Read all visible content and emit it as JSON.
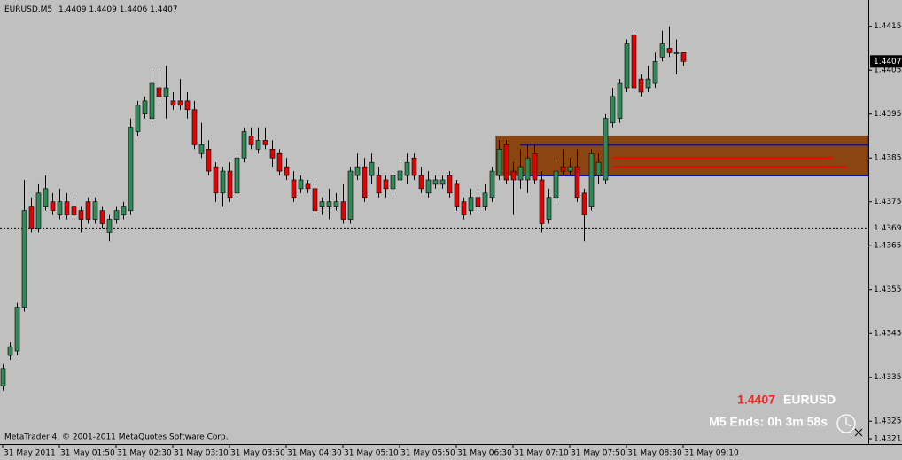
{
  "chart_data": {
    "type": "candlestick",
    "title": "EURUSD,M5",
    "categories": [
      "31 May 2011",
      null,
      null,
      null,
      null,
      null,
      null,
      null,
      "31 May 01:50",
      null,
      null,
      null,
      null,
      null,
      null,
      null,
      "31 May 02:30",
      null,
      null,
      null,
      null,
      null,
      null,
      null,
      "31 May 03:10",
      null,
      null,
      null,
      null,
      null,
      null,
      null,
      "31 May 03:50",
      null,
      null,
      null,
      null,
      null,
      null,
      null,
      "31 May 04:30",
      null,
      null,
      null,
      null,
      null,
      null,
      null,
      "31 May 05:10",
      null,
      null,
      null,
      null,
      null,
      null,
      null,
      "31 May 05:50",
      null,
      null,
      null,
      null,
      null,
      null,
      null,
      "31 May 06:30",
      null,
      null,
      null,
      null,
      null,
      null,
      null,
      "31 May 07:10",
      null,
      null,
      null,
      null,
      null,
      null,
      null,
      "31 May 07:50",
      null,
      null,
      null,
      null,
      null,
      null,
      null,
      "31 May 08:30",
      null,
      null,
      null,
      null,
      null,
      null,
      null,
      "31 May 09:10"
    ],
    "open": [
      1.4333,
      1.434,
      1.4341,
      1.4351,
      1.4374,
      1.4369,
      1.4374,
      1.4375,
      1.4372,
      1.4375,
      1.4374,
      1.4373,
      1.4375,
      1.4371,
      1.4373,
      1.4368,
      1.4371,
      1.4372,
      1.4373,
      1.4391,
      1.4395,
      1.4394,
      1.4401,
      1.4399,
      1.4398,
      1.4398,
      1.4398,
      1.4396,
      1.4386,
      1.4387,
      1.4383,
      1.4377,
      1.4382,
      1.4377,
      1.4385,
      1.439,
      1.4387,
      1.4389,
      1.4387,
      1.4386,
      1.4383,
      1.438,
      1.4378,
      1.4379,
      1.4378,
      1.4374,
      1.4374,
      1.4374,
      1.4375,
      1.4371,
      1.4381,
      1.4383,
      1.4381,
      1.4381,
      1.438,
      1.4378,
      1.438,
      1.4381,
      1.4385,
      1.4381,
      1.4377,
      1.4379,
      1.4379,
      1.4381,
      1.4379,
      1.4375,
      1.4373,
      1.4376,
      1.4374,
      1.4376,
      1.4381,
      1.4388,
      1.4382,
      1.438,
      1.438,
      1.4386,
      1.438,
      1.4371,
      1.4376,
      1.4383,
      1.4382,
      1.4383,
      1.4377,
      1.4374,
      1.4381,
      1.438,
      1.4393,
      1.4394,
      1.4401,
      1.4413,
      1.4403,
      1.4401,
      1.4402,
      1.4408,
      1.441,
      1.4409,
      1.4409
    ],
    "high": [
      1.4338,
      1.4343,
      1.4352,
      1.438,
      1.4376,
      1.4379,
      1.4381,
      1.4377,
      1.4378,
      1.4377,
      1.4376,
      1.4374,
      1.4376,
      1.4376,
      1.4374,
      1.4372,
      1.4374,
      1.4375,
      1.4394,
      1.4398,
      1.4399,
      1.4405,
      1.4405,
      1.4406,
      1.44,
      1.4403,
      1.44,
      1.4398,
      1.4393,
      1.4389,
      1.4384,
      1.4383,
      1.4384,
      1.4386,
      1.4392,
      1.4392,
      1.4392,
      1.4392,
      1.4389,
      1.4387,
      1.4385,
      1.4382,
      1.4381,
      1.438,
      1.438,
      1.4376,
      1.4378,
      1.4377,
      1.4379,
      1.4383,
      1.4386,
      1.4385,
      1.4386,
      1.4383,
      1.4381,
      1.4382,
      1.4384,
      1.4386,
      1.4386,
      1.4383,
      1.4382,
      1.4381,
      1.4381,
      1.4382,
      1.438,
      1.4376,
      1.4378,
      1.4378,
      1.4379,
      1.4383,
      1.4389,
      1.4389,
      1.4384,
      1.4387,
      1.4388,
      1.4388,
      1.4382,
      1.4378,
      1.4385,
      1.4387,
      1.4385,
      1.4387,
      1.4378,
      1.4387,
      1.4386,
      1.4395,
      1.4401,
      1.4403,
      1.4412,
      1.4414,
      1.4404,
      1.4406,
      1.4409,
      1.4414,
      1.4415,
      1.4412,
      1.4409
    ],
    "low": [
      1.4332,
      1.4339,
      1.434,
      1.435,
      1.4368,
      1.4368,
      1.4373,
      1.4372,
      1.4371,
      1.4371,
      1.4371,
      1.4368,
      1.437,
      1.437,
      1.4369,
      1.4366,
      1.437,
      1.4371,
      1.4372,
      1.439,
      1.4394,
      1.4393,
      1.4398,
      1.4394,
      1.4396,
      1.4396,
      1.4394,
      1.4387,
      1.4385,
      1.4381,
      1.4375,
      1.4374,
      1.4375,
      1.4376,
      1.4384,
      1.4387,
      1.4386,
      1.4387,
      1.4383,
      1.4381,
      1.438,
      1.4375,
      1.4377,
      1.4377,
      1.4372,
      1.4372,
      1.4371,
      1.4373,
      1.437,
      1.437,
      1.438,
      1.4375,
      1.4379,
      1.4376,
      1.4376,
      1.4377,
      1.4379,
      1.4379,
      1.438,
      1.4377,
      1.4376,
      1.4378,
      1.4378,
      1.4376,
      1.4373,
      1.4371,
      1.4372,
      1.4373,
      1.4373,
      1.4375,
      1.438,
      1.4379,
      1.4372,
      1.4378,
      1.4377,
      1.4379,
      1.4368,
      1.437,
      1.4375,
      1.4381,
      1.4381,
      1.4375,
      1.4366,
      1.4373,
      1.4379,
      1.4379,
      1.4392,
      1.4393,
      1.44,
      1.44,
      1.4399,
      1.44,
      1.4401,
      1.4407,
      1.4408,
      1.4404,
      1.4406
    ],
    "close": [
      1.4337,
      1.4342,
      1.4351,
      1.4373,
      1.4369,
      1.4377,
      1.4378,
      1.4373,
      1.4375,
      1.4372,
      1.4372,
      1.4371,
      1.4371,
      1.4375,
      1.437,
      1.4371,
      1.4373,
      1.4374,
      1.4392,
      1.4397,
      1.4398,
      1.4402,
      1.4399,
      1.4401,
      1.4397,
      1.4397,
      1.4396,
      1.4388,
      1.4388,
      1.4382,
      1.4377,
      1.4382,
      1.4376,
      1.4385,
      1.4391,
      1.4388,
      1.4389,
      1.4388,
      1.4385,
      1.4382,
      1.4381,
      1.4376,
      1.438,
      1.4378,
      1.4373,
      1.4375,
      1.4375,
      1.4375,
      1.4371,
      1.4382,
      1.4383,
      1.4376,
      1.4384,
      1.4377,
      1.4378,
      1.4381,
      1.4382,
      1.4384,
      1.4381,
      1.4378,
      1.438,
      1.438,
      1.438,
      1.4377,
      1.4374,
      1.4372,
      1.4376,
      1.4374,
      1.4377,
      1.4382,
      1.4387,
      1.438,
      1.438,
      1.4383,
      1.4385,
      1.438,
      1.437,
      1.4376,
      1.4382,
      1.4382,
      1.4383,
      1.4376,
      1.4372,
      1.4386,
      1.4384,
      1.4394,
      1.4399,
      1.4402,
      1.4411,
      1.4401,
      1.44,
      1.4403,
      1.4407,
      1.4411,
      1.4409,
      1.4409,
      1.4407
    ],
    "up_color": "#2e8b57",
    "down_color": "#e00000",
    "ylim": [
      1.432,
      1.4421
    ],
    "yticks": [
      1.4415,
      1.4405,
      1.4395,
      1.4385,
      1.4375,
      1.4365,
      1.4355,
      1.4345,
      1.4335,
      1.4325,
      1.4321
    ],
    "grid": false,
    "zone": {
      "top": 1.439,
      "bottom": 1.4381,
      "from": 70,
      "color": "#8b4513"
    },
    "levels": [
      {
        "value": 1.4388,
        "from": 73,
        "color": "#1010a0"
      },
      {
        "value": 1.4381,
        "from": 73,
        "color": "#1010a0"
      },
      {
        "value": 1.4385,
        "from": 86,
        "to": 117,
        "color": "#ff0000"
      },
      {
        "value": 1.4383,
        "from": 86,
        "to": 119,
        "color": "#ff0000"
      }
    ],
    "hline": {
      "value": 1.4369,
      "dashed": true
    },
    "symbol": "EURUSD",
    "timer": "M5 Ends: 0h 3m 58s",
    "copyright": "MetaTrader 4, © 2001-2011 MetaQuotes Software Corp."
  }
}
